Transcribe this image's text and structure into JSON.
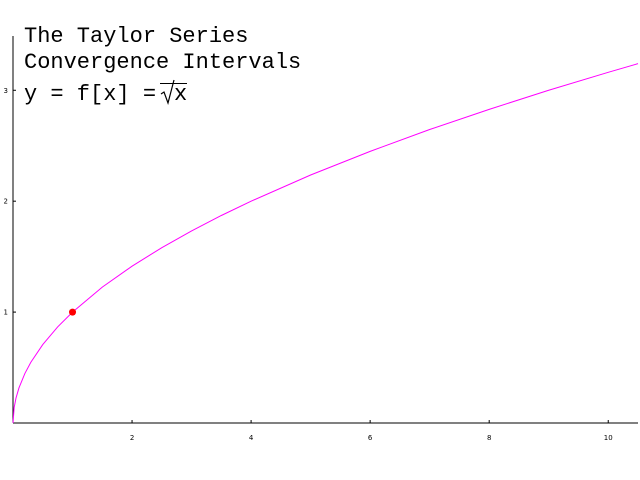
{
  "chart_data": {
    "type": "line",
    "title": [
      "The Taylor Series",
      "Convergence Intervals"
    ],
    "function_label": "y = f[x] =",
    "function_arg": "x",
    "xlim": [
      0,
      10.5
    ],
    "ylim": [
      0,
      3.3
    ],
    "x_ticks": [
      2,
      4,
      6,
      8,
      10
    ],
    "y_ticks": [
      1,
      2,
      3
    ],
    "series": [
      {
        "color": "#ff00ff",
        "x": [
          0,
          0.02,
          0.05,
          0.1,
          0.2,
          0.3,
          0.5,
          0.75,
          1,
          1.5,
          2,
          2.5,
          3,
          3.5,
          4,
          5,
          6,
          7,
          8,
          9,
          10,
          10.5
        ],
        "y": [
          0,
          0.141,
          0.224,
          0.316,
          0.447,
          0.548,
          0.707,
          0.866,
          1,
          1.225,
          1.414,
          1.581,
          1.732,
          1.871,
          2,
          2.236,
          2.449,
          2.646,
          2.828,
          3,
          3.162,
          3.24
        ]
      }
    ],
    "points": [
      {
        "x": 1,
        "y": 1,
        "color": "#ff0000"
      }
    ]
  }
}
